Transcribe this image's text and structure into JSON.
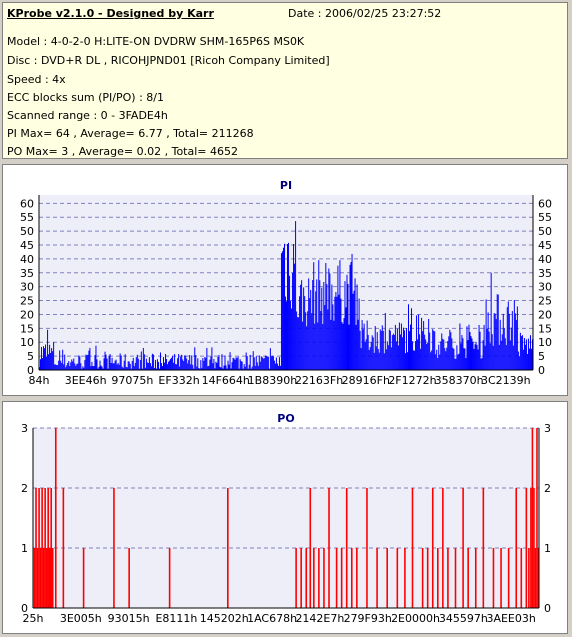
{
  "header": {
    "title": "KProbe v2.1.0 - Designed by Karr",
    "date": "Date : 2006/02/25 23:27:52",
    "lines": [
      "Model : 4-0-2-0 H:LITE-ON DVDRW SHM-165P6S MS0K",
      "Disc : DVD+R DL , RICOHJPND01 [Ricoh Company Limited]",
      "Speed : 4x",
      "ECC blocks sum (PI/PO) : 8/1",
      "Scanned range : 0 - 3FADE4h",
      "PI Max= 64 , Average= 6.77 , Total= 211268",
      "PO Max= 3 , Average= 0.02 , Total= 4652"
    ]
  },
  "colors": {
    "pi": "#0000ff",
    "po": "#ff0000",
    "grid": "#8080c0",
    "plot_bg": "#eeeef8"
  },
  "chart_data": [
    {
      "type": "bar",
      "title": "PI",
      "ylim": [
        0,
        63
      ],
      "yticks": [
        0,
        5,
        10,
        15,
        20,
        25,
        30,
        35,
        40,
        45,
        50,
        55,
        60
      ],
      "grid": true,
      "xtick_labels": [
        "84h",
        "3EE46h",
        "97075h",
        "EF332h",
        "14F664h",
        "1B8390h",
        "22163Fh",
        "28916Fh",
        "2F1272h",
        "358370h",
        "3C2139h"
      ],
      "series": [
        {
          "segments": [
            {
              "from": 0.0,
              "to": 0.03,
              "base": 6,
              "var": 5,
              "spike": 16
            },
            {
              "from": 0.03,
              "to": 0.49,
              "base": 3,
              "var": 3,
              "spike": 9
            },
            {
              "from": 0.49,
              "to": 0.52,
              "base": 40,
              "var": 20,
              "spike": 64
            },
            {
              "from": 0.52,
              "to": 0.55,
              "base": 25,
              "var": 10,
              "spike": 45
            },
            {
              "from": 0.55,
              "to": 0.65,
              "base": 28,
              "var": 12,
              "spike": 42
            },
            {
              "from": 0.65,
              "to": 0.8,
              "base": 12,
              "var": 6,
              "spike": 24
            },
            {
              "from": 0.8,
              "to": 0.9,
              "base": 9,
              "var": 5,
              "spike": 18
            },
            {
              "from": 0.9,
              "to": 0.97,
              "base": 18,
              "var": 10,
              "spike": 36
            },
            {
              "from": 0.97,
              "to": 1.0,
              "base": 9,
              "var": 5,
              "spike": 14
            }
          ],
          "count": 490
        }
      ]
    },
    {
      "type": "bar",
      "title": "PO",
      "ylim": [
        0,
        3
      ],
      "yticks": [
        0,
        1,
        2,
        3
      ],
      "grid": true,
      "xtick_labels": [
        "25h",
        "3E005h",
        "93015h",
        "E8111h",
        "145202h",
        "1AC678h",
        "2142E7h",
        "279F93h",
        "2E0000h",
        "345597h",
        "3AEE03h"
      ],
      "series": [
        {
          "spikes": [
            {
              "x": 0.003,
              "v": 1
            },
            {
              "x": 0.006,
              "v": 2
            },
            {
              "x": 0.009,
              "v": 1
            },
            {
              "x": 0.012,
              "v": 2
            },
            {
              "x": 0.015,
              "v": 1
            },
            {
              "x": 0.018,
              "v": 2
            },
            {
              "x": 0.021,
              "v": 1
            },
            {
              "x": 0.024,
              "v": 2
            },
            {
              "x": 0.027,
              "v": 1
            },
            {
              "x": 0.03,
              "v": 2
            },
            {
              "x": 0.033,
              "v": 1
            },
            {
              "x": 0.036,
              "v": 2
            },
            {
              "x": 0.039,
              "v": 1
            },
            {
              "x": 0.045,
              "v": 3
            },
            {
              "x": 0.06,
              "v": 2
            },
            {
              "x": 0.1,
              "v": 1
            },
            {
              "x": 0.16,
              "v": 2
            },
            {
              "x": 0.19,
              "v": 1
            },
            {
              "x": 0.27,
              "v": 1
            },
            {
              "x": 0.385,
              "v": 2
            },
            {
              "x": 0.52,
              "v": 1
            },
            {
              "x": 0.53,
              "v": 1
            },
            {
              "x": 0.54,
              "v": 1
            },
            {
              "x": 0.548,
              "v": 2
            },
            {
              "x": 0.555,
              "v": 1
            },
            {
              "x": 0.565,
              "v": 1
            },
            {
              "x": 0.575,
              "v": 1
            },
            {
              "x": 0.585,
              "v": 2
            },
            {
              "x": 0.6,
              "v": 1
            },
            {
              "x": 0.61,
              "v": 1
            },
            {
              "x": 0.62,
              "v": 2
            },
            {
              "x": 0.63,
              "v": 1
            },
            {
              "x": 0.64,
              "v": 1
            },
            {
              "x": 0.66,
              "v": 2
            },
            {
              "x": 0.68,
              "v": 1
            },
            {
              "x": 0.7,
              "v": 1
            },
            {
              "x": 0.72,
              "v": 1
            },
            {
              "x": 0.735,
              "v": 1
            },
            {
              "x": 0.75,
              "v": 2
            },
            {
              "x": 0.77,
              "v": 1
            },
            {
              "x": 0.78,
              "v": 1
            },
            {
              "x": 0.79,
              "v": 2
            },
            {
              "x": 0.8,
              "v": 1
            },
            {
              "x": 0.81,
              "v": 2
            },
            {
              "x": 0.82,
              "v": 1
            },
            {
              "x": 0.835,
              "v": 1
            },
            {
              "x": 0.85,
              "v": 2
            },
            {
              "x": 0.86,
              "v": 1
            },
            {
              "x": 0.875,
              "v": 1
            },
            {
              "x": 0.89,
              "v": 2
            },
            {
              "x": 0.91,
              "v": 1
            },
            {
              "x": 0.925,
              "v": 1
            },
            {
              "x": 0.94,
              "v": 1
            },
            {
              "x": 0.955,
              "v": 2
            },
            {
              "x": 0.965,
              "v": 1
            },
            {
              "x": 0.975,
              "v": 2
            },
            {
              "x": 0.98,
              "v": 1
            },
            {
              "x": 0.984,
              "v": 2
            },
            {
              "x": 0.987,
              "v": 3
            },
            {
              "x": 0.99,
              "v": 2
            },
            {
              "x": 0.993,
              "v": 1
            },
            {
              "x": 0.996,
              "v": 3
            },
            {
              "x": 0.999,
              "v": 1
            }
          ]
        }
      ]
    }
  ]
}
